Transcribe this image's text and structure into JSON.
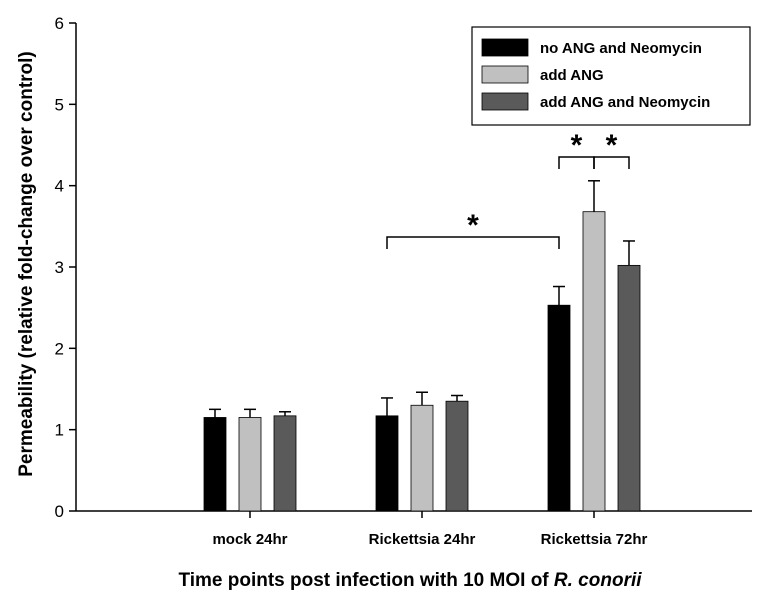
{
  "chart_data": {
    "type": "bar",
    "xlabel_prefix": "Time points post infection with 10 MOI of ",
    "xlabel_italic": "R. conorii",
    "ylabel": "Permeability (relative fold-change over control)",
    "ylim": [
      0,
      6
    ],
    "yticks": [
      "0",
      "1",
      "2",
      "3",
      "4",
      "5",
      "6"
    ],
    "categories": [
      "mock 24hr",
      "Rickettsia 24hr",
      "Rickettsia 72hr"
    ],
    "series": [
      {
        "name": "no ANG and Neomycin",
        "color": "#000000",
        "values": [
          1.15,
          1.17,
          2.53
        ],
        "errors": [
          0.1,
          0.22,
          0.23
        ]
      },
      {
        "name": "add ANG",
        "color": "#c0c0c0",
        "values": [
          1.15,
          1.3,
          3.68
        ],
        "errors": [
          0.1,
          0.16,
          0.38
        ]
      },
      {
        "name": "add ANG and Neomycin",
        "color": "#5a5a5a",
        "values": [
          1.17,
          1.35,
          3.02
        ],
        "errors": [
          0.05,
          0.07,
          0.3
        ]
      }
    ],
    "significance": [
      {
        "label": "*",
        "from": {
          "category": 1,
          "series": 0
        },
        "to": {
          "category": 2,
          "series": 0
        }
      },
      {
        "label": "*",
        "from": {
          "category": 2,
          "series": 0
        },
        "to": {
          "category": 2,
          "series": 1
        }
      },
      {
        "label": "*",
        "from": {
          "category": 2,
          "series": 1
        },
        "to": {
          "category": 2,
          "series": 2
        }
      }
    ],
    "legend_position": "top-right",
    "grid": false
  }
}
